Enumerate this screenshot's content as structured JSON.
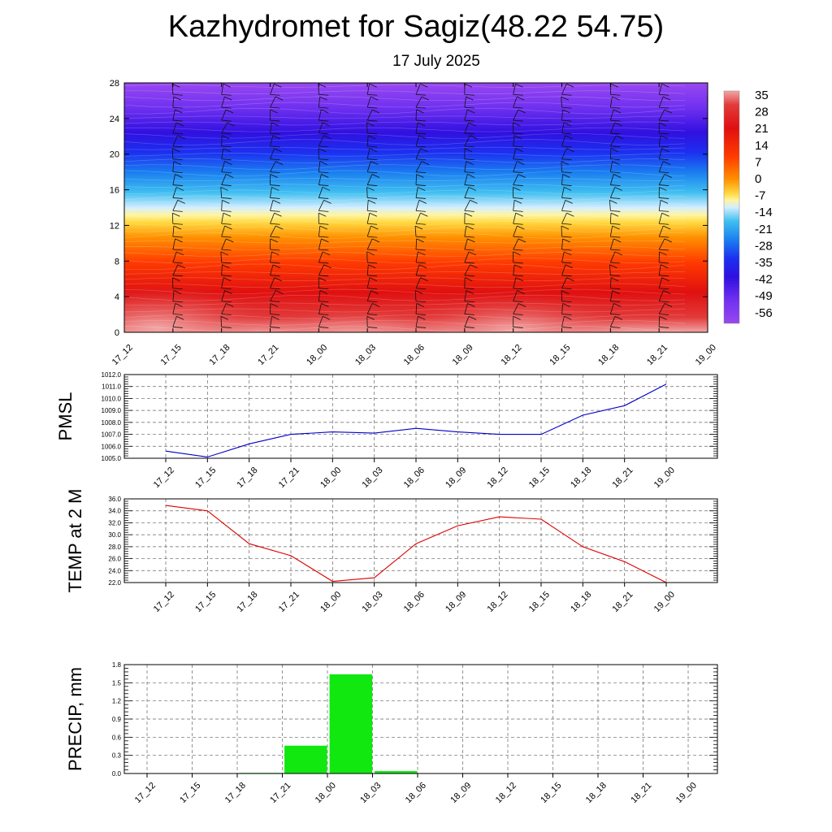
{
  "title": "Kazhydromet for Sagiz(48.22 54.75)",
  "date": "17 July 2025",
  "time_labels": [
    "17_12",
    "17_15",
    "17_18",
    "17_21",
    "18_00",
    "18_03",
    "18_06",
    "18_09",
    "18_12",
    "18_15",
    "18_18",
    "18_21",
    "19_00"
  ],
  "chart_data": [
    {
      "type": "heatmap",
      "name": "temperature-cross-section",
      "yticks": [
        0,
        4,
        8,
        12,
        16,
        20,
        24,
        28
      ],
      "ylim": [
        0,
        28
      ],
      "colorbar_labels": [
        "35",
        "28",
        "21",
        "14",
        "7",
        "0",
        "-7",
        "-14",
        "-21",
        "-28",
        "-35",
        "-42",
        "-49",
        "-56"
      ],
      "colors": [
        "#f4b8b8",
        "#e84040",
        "#dd1010",
        "#f04010",
        "#ff8000",
        "#ffc000",
        "#fff080",
        "#bfe6ff",
        "#40b8f0",
        "#1070f0",
        "#2030f0",
        "#3010e8",
        "#6020f0",
        "#9040f0"
      ]
    },
    {
      "type": "line",
      "ylabel": "PMSL",
      "ylim": [
        1005.0,
        1012.0
      ],
      "yticks": [
        "1005.0",
        "1006.0",
        "1007.0",
        "1008.0",
        "1009.0",
        "1010.0",
        "1011.0",
        "1012.0"
      ],
      "values": [
        1005.6,
        1005.1,
        1006.2,
        1007.0,
        1007.2,
        1007.1,
        1007.5,
        1007.2,
        1007.0,
        1007.0,
        1008.6,
        1009.4,
        1011.2
      ],
      "color": "#0000c8"
    },
    {
      "type": "line",
      "ylabel": "TEMP at 2 M",
      "ylim": [
        22.0,
        36.0
      ],
      "yticks": [
        "22.0",
        "24.0",
        "26.0",
        "28.0",
        "30.0",
        "32.0",
        "34.0",
        "36.0"
      ],
      "values": [
        34.9,
        34.0,
        28.5,
        26.5,
        22.2,
        22.8,
        28.5,
        31.5,
        33.0,
        32.6,
        28.0,
        25.5,
        22.0
      ],
      "color": "#dd0000"
    },
    {
      "type": "bar",
      "ylabel": "PRECIP, mm",
      "ylim": [
        0.0,
        1.8
      ],
      "yticks": [
        "0.0",
        "0.3",
        "0.6",
        "0.9",
        "1.2",
        "1.5",
        "1.8"
      ],
      "values": [
        0,
        0,
        0,
        0.01,
        0.46,
        1.64,
        0.04,
        0,
        0,
        0,
        0,
        0,
        0
      ],
      "color": "#10e810"
    }
  ]
}
